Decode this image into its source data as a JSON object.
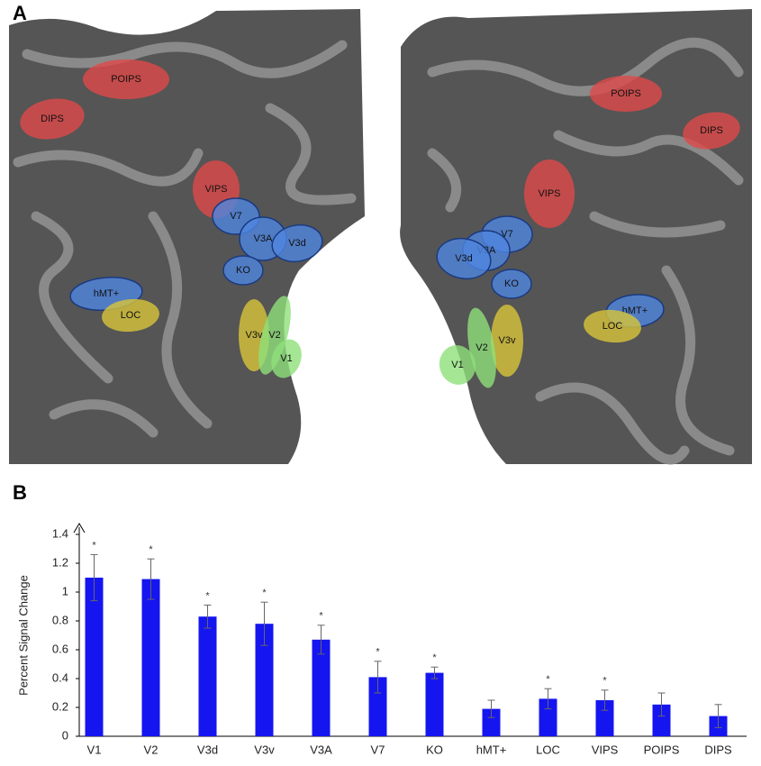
{
  "panel_a": {
    "label": "A",
    "left_hemisphere": [
      "POIPS",
      "DIPS",
      "VIPS",
      "V7",
      "V3A",
      "V3d",
      "KO",
      "hMT+",
      "LOC",
      "V3v",
      "V2",
      "V1"
    ],
    "right_hemisphere": [
      "POIPS",
      "DIPS",
      "VIPS",
      "V7",
      "V3A",
      "V3d",
      "KO",
      "hMT+",
      "LOC",
      "V3v",
      "V2",
      "V1"
    ]
  },
  "panel_b": {
    "label": "B"
  },
  "chart_data": {
    "type": "bar",
    "y_label": "Percent Signal Change",
    "categories": [
      "V1",
      "V2",
      "V3d",
      "V3v",
      "V3A",
      "V7",
      "KO",
      "hMT+",
      "LOC",
      "VIPS",
      "POIPS",
      "DIPS"
    ],
    "values": [
      1.1,
      1.09,
      0.83,
      0.78,
      0.67,
      0.41,
      0.44,
      0.19,
      0.26,
      0.25,
      0.22,
      0.14
    ],
    "errors": [
      0.16,
      0.14,
      0.08,
      0.15,
      0.1,
      0.11,
      0.04,
      0.06,
      0.07,
      0.07,
      0.08,
      0.08
    ],
    "significance": [
      "*",
      "*",
      "*",
      "*",
      "*",
      "*",
      "*",
      null,
      "*",
      "*",
      null,
      null
    ],
    "color": "#1515f0",
    "ylim": [
      0,
      1.4
    ],
    "yticks": [
      0,
      0.2,
      0.4,
      0.6,
      0.8,
      1,
      1.2,
      1.4
    ]
  }
}
